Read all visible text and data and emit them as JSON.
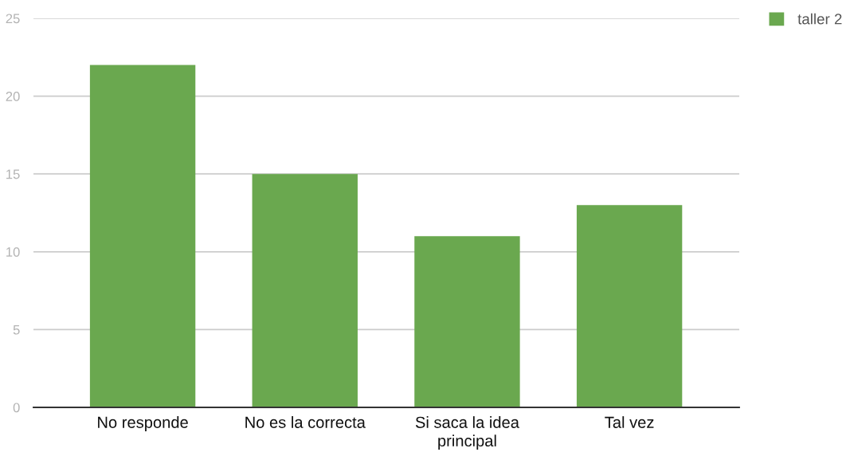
{
  "chart_data": {
    "type": "bar",
    "categories": [
      "No responde",
      "No es la correcta",
      "Si saca la idea principal",
      "Tal vez"
    ],
    "series": [
      {
        "name": "taller 2",
        "color": "#6aa84f",
        "values": [
          22,
          15,
          11,
          13
        ]
      }
    ],
    "ylim": [
      0,
      25
    ],
    "yticks": [
      0,
      5,
      10,
      15,
      20,
      25
    ],
    "grid": "y",
    "legend": "top right"
  }
}
